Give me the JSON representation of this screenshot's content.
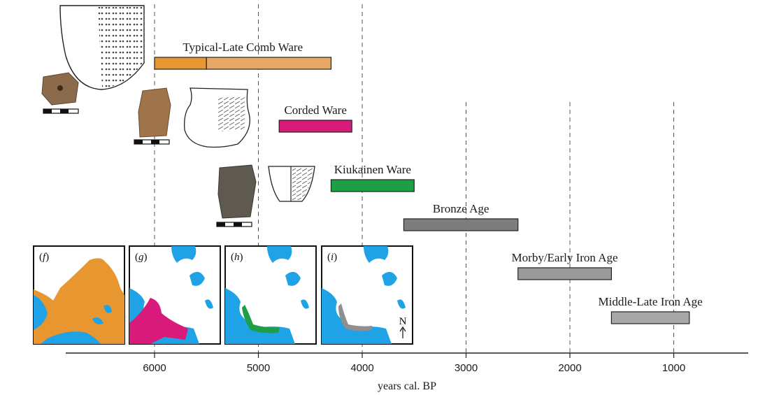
{
  "chart_data": {
    "type": "bar",
    "orientation": "horizontal",
    "xlabel": "years cal. BP",
    "x_reversed": true,
    "xlim": [
      6850,
      300
    ],
    "x_ticks": [
      6000,
      5000,
      4000,
      3000,
      2000,
      1000
    ],
    "gridlines": "dashed vertical at 6000, 5000, 4000, 3000, 2000, 1000",
    "series": [
      {
        "name": "Typical-Late Comb Ware",
        "start": 6000,
        "end": 4300,
        "split": 5500,
        "color": "#E8962F",
        "color2": "#E8A865"
      },
      {
        "name": "Corded Ware",
        "start": 4800,
        "end": 4100,
        "color": "#D81B7A"
      },
      {
        "name": "Kiukainen Ware",
        "start": 4300,
        "end": 3500,
        "color": "#1E9E47"
      },
      {
        "name": "Bronze Age",
        "start": 3600,
        "end": 2500,
        "color": "#7D7D7D"
      },
      {
        "name": "Morby/Early Iron Age",
        "start": 2500,
        "end": 1600,
        "color": "#9A9A9A"
      },
      {
        "name": "Middle-Late Iron Age",
        "start": 1600,
        "end": 850,
        "color": "#A8A8A8"
      }
    ],
    "map_panels": [
      {
        "paren_open": "(",
        "letter": "f",
        "paren_close": ")",
        "fill": "#E8962F"
      },
      {
        "paren_open": "(",
        "letter": "g",
        "paren_close": ")",
        "fill": "#D81B7A"
      },
      {
        "paren_open": "(",
        "letter": "h",
        "paren_close": ")",
        "fill": "#1E9E47"
      },
      {
        "paren_open": "(",
        "letter": "i",
        "paren_close": ")",
        "fill": "#8F8F8F",
        "compass": "N"
      }
    ],
    "sea_color": "#1FA3E6"
  }
}
